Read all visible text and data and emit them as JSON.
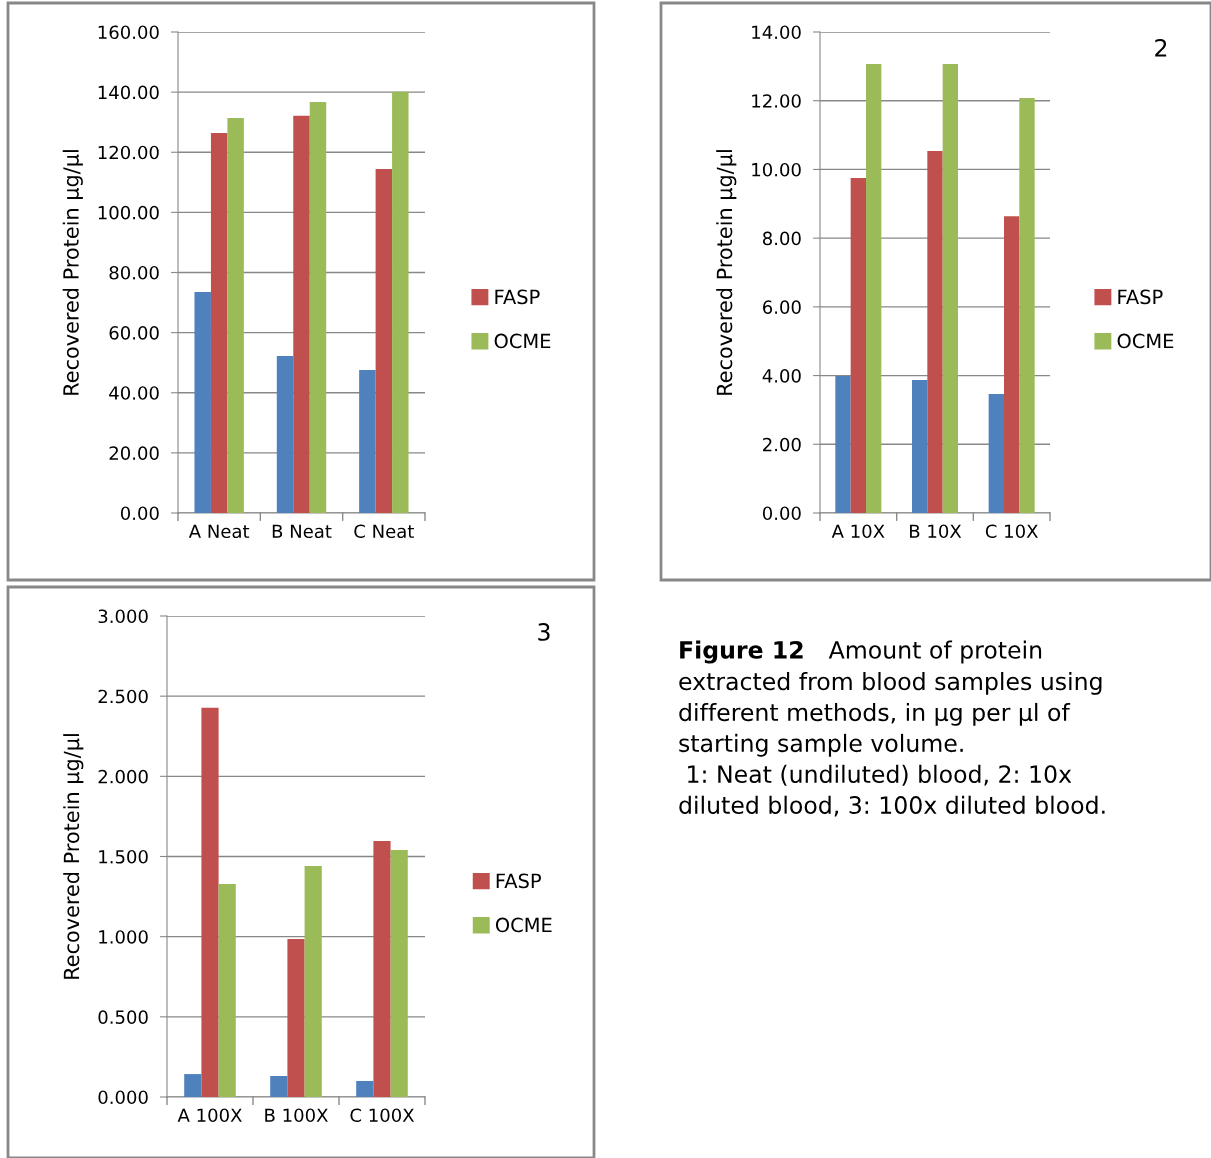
{
  "chart_data": [
    {
      "type": "bar",
      "ylabel": "Recovered Protein µg/µl",
      "categories": [
        "A Neat",
        "B Neat",
        "C Neat"
      ],
      "series": [
        {
          "color": "#4f81bd",
          "values": [
            73.5,
            52.2,
            47.6
          ]
        },
        {
          "name": "FASP",
          "color": "#c0504d",
          "values": [
            126.4,
            132.1,
            114.4
          ]
        },
        {
          "name": "OCME",
          "color": "#9bbb59",
          "values": [
            131.4,
            136.7,
            140.1
          ]
        }
      ],
      "ylim": [
        0,
        160
      ],
      "yticks": [
        {
          "value": 0,
          "label": "0.00"
        },
        {
          "value": 20,
          "label": "20.00"
        },
        {
          "value": 40,
          "label": "40.00"
        },
        {
          "value": 60,
          "label": "60.00"
        },
        {
          "value": 80,
          "label": "80.00"
        },
        {
          "value": 100,
          "label": "100.00"
        },
        {
          "value": 120,
          "label": "120.00"
        },
        {
          "value": 140,
          "label": "140.00"
        },
        {
          "value": 160,
          "label": "160.00"
        }
      ],
      "grid": "y",
      "legend": "right"
    },
    {
      "type": "bar",
      "ylabel": "Recovered Protein µg/µl",
      "annotations": [
        "2"
      ],
      "categories": [
        "A 10X",
        "B 10X",
        "C 10X"
      ],
      "series": [
        {
          "color": "#4f81bd",
          "values": [
            3.99,
            3.87,
            3.46
          ]
        },
        {
          "name": "FASP",
          "color": "#c0504d",
          "values": [
            9.75,
            10.54,
            8.64
          ]
        },
        {
          "name": "OCME",
          "color": "#9bbb59",
          "values": [
            13.07,
            13.07,
            12.08
          ]
        }
      ],
      "ylim": [
        0,
        14
      ],
      "yticks": [
        {
          "value": 0,
          "label": "0.00"
        },
        {
          "value": 2,
          "label": "2.00"
        },
        {
          "value": 4,
          "label": "4.00"
        },
        {
          "value": 6,
          "label": "6.00"
        },
        {
          "value": 8,
          "label": "8.00"
        },
        {
          "value": 10,
          "label": "10.00"
        },
        {
          "value": 12,
          "label": "12.00"
        },
        {
          "value": 14,
          "label": "14.00"
        }
      ],
      "grid": "y",
      "legend": "right"
    },
    {
      "type": "bar",
      "ylabel": "Recovered Protein µg/µl",
      "annotations": [
        "3"
      ],
      "categories": [
        "A 100X",
        "B 100X",
        "C 100X"
      ],
      "series": [
        {
          "color": "#4f81bd",
          "values": [
            0.143,
            0.131,
            0.1
          ]
        },
        {
          "name": "FASP",
          "color": "#c0504d",
          "values": [
            2.427,
            0.986,
            1.597
          ]
        },
        {
          "name": "OCME",
          "color": "#9bbb59",
          "values": [
            1.329,
            1.441,
            1.541
          ]
        }
      ],
      "ylim": [
        0,
        3
      ],
      "yticks": [
        {
          "value": 0,
          "label": "0.000"
        },
        {
          "value": 0.5,
          "label": "0.500"
        },
        {
          "value": 1,
          "label": "1.000"
        },
        {
          "value": 1.5,
          "label": "1.500"
        },
        {
          "value": 2,
          "label": "2.000"
        },
        {
          "value": 2.5,
          "label": "2.500"
        },
        {
          "value": 3,
          "label": "3.000"
        }
      ],
      "grid": "y",
      "legend": "right"
    },
    {
      "type": "other",
      "title": "Figure 12",
      "annotations": [
        "Amount of protein\nextracted from blood samples using\ndifferent methods, in µg per µl of\nstarting sample volume.\n 1: Neat (undiluted) blood, 2: 10x\ndiluted blood, 3: 100x diluted blood."
      ]
    }
  ]
}
